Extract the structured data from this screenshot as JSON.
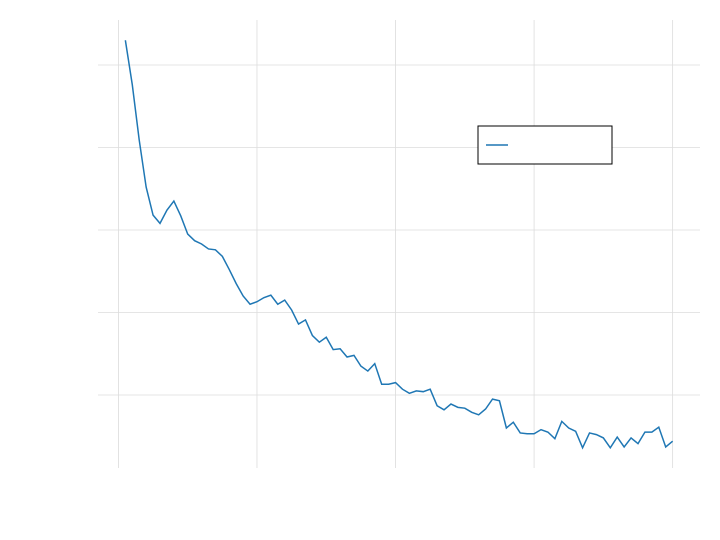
{
  "chart_data": {
    "type": "line",
    "x": [
      1,
      2,
      3,
      4,
      5,
      6,
      7,
      8,
      9,
      10,
      11,
      12,
      13,
      14,
      15,
      16,
      17,
      18,
      19,
      20,
      21,
      22,
      23,
      24,
      25,
      26,
      27,
      28,
      29,
      30,
      31,
      32,
      33,
      34,
      35,
      36,
      37,
      38,
      39,
      40,
      41,
      42,
      43,
      44,
      45,
      46,
      47,
      48,
      49,
      50,
      51,
      52,
      53,
      54,
      55,
      56,
      57,
      58,
      59,
      60,
      61,
      62,
      63,
      64,
      65,
      66,
      67,
      68,
      69,
      70,
      71,
      72,
      73,
      74,
      75,
      76,
      77,
      78,
      79,
      80
    ],
    "series": [
      {
        "color": "#1f77b4",
        "values": [
          5.3,
          4.76,
          4.09,
          3.52,
          3.18,
          3.08,
          3.24,
          3.35,
          3.17,
          2.95,
          2.87,
          2.83,
          2.77,
          2.76,
          2.68,
          2.52,
          2.35,
          2.2,
          2.1,
          2.13,
          2.18,
          2.21,
          2.1,
          2.15,
          2.03,
          1.86,
          1.91,
          1.72,
          1.64,
          1.7,
          1.55,
          1.56,
          1.46,
          1.48,
          1.35,
          1.29,
          1.38,
          1.13,
          1.13,
          1.15,
          1.07,
          1.02,
          1.05,
          1.04,
          1.07,
          0.87,
          0.82,
          0.89,
          0.85,
          0.84,
          0.79,
          0.76,
          0.83,
          0.95,
          0.93,
          0.6,
          0.67,
          0.54,
          0.53,
          0.53,
          0.58,
          0.55,
          0.47,
          0.68,
          0.6,
          0.56,
          0.36,
          0.54,
          0.52,
          0.48,
          0.36,
          0.49,
          0.37,
          0.48,
          0.41,
          0.55,
          0.55,
          0.61,
          0.37,
          0.44
        ]
      }
    ],
    "xlim": [
      -2.95,
      83.95
    ],
    "xticks": [
      0,
      20,
      40,
      60,
      80
    ],
    "ylim": [
      0.115,
      5.545
    ],
    "yticks": [
      1,
      2,
      3,
      4,
      5
    ],
    "grid": true,
    "legend": "upper right"
  }
}
